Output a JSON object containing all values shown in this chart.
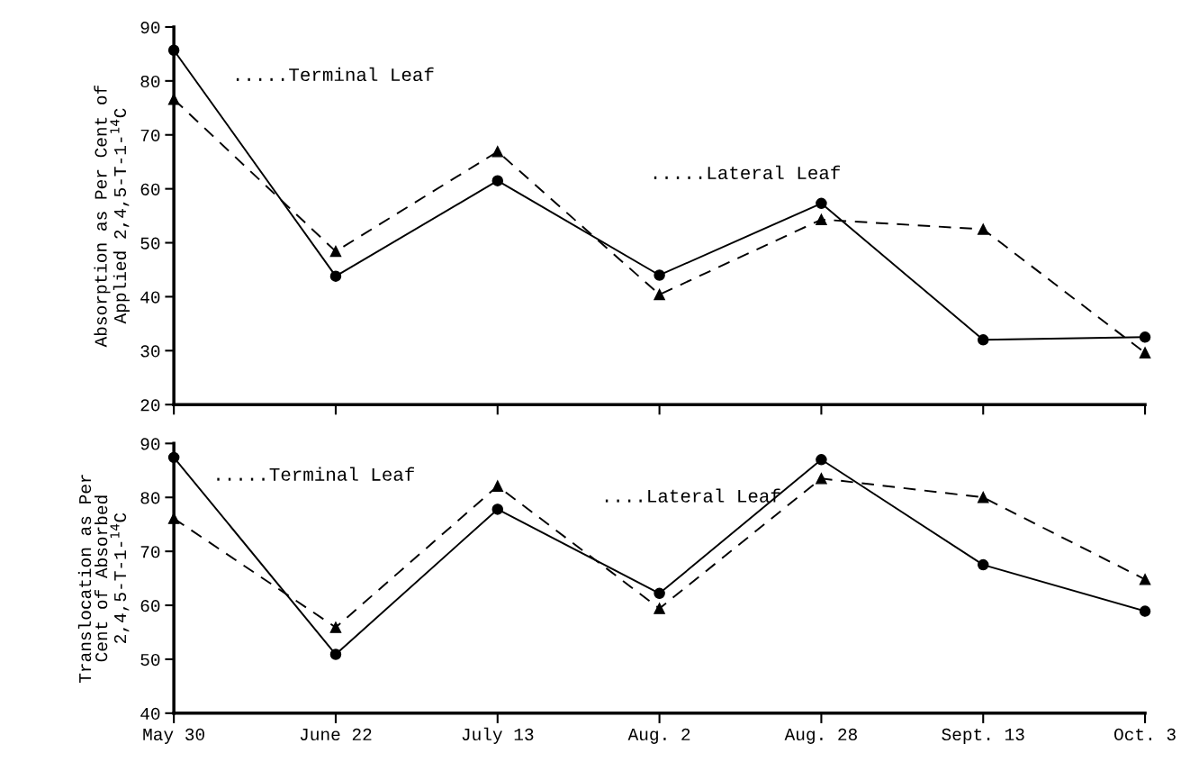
{
  "chart_data": [
    {
      "type": "line",
      "ylabel": "Absorption as Per Cent of\nApplied 2,4,5-T-1-$^{14}$C",
      "categories": [
        null,
        null,
        null,
        null,
        null,
        null,
        null
      ],
      "series": [
        {
          "color": "#000000",
          "marker": "circle",
          "line_style": "solid",
          "values": [
            85.7,
            43.8,
            61.5,
            44,
            57.3,
            32,
            32.5
          ]
        },
        {
          "color": "#000000",
          "marker": "triangle",
          "line_style": "dashed",
          "values": [
            76.6,
            48.4,
            66.9,
            40.4,
            54.3,
            52.5,
            29.6
          ]
        }
      ],
      "ylim": [
        20,
        90
      ],
      "yticks": [
        20,
        30,
        40,
        50,
        60,
        70,
        80,
        90
      ],
      "tick_labels": "y",
      "grid": false,
      "legend": false,
      "annotations": [
        ".....Terminal Leaf",
        ".....Lateral Leaf"
      ]
    },
    {
      "type": "line",
      "ylabel": "Translocation as Per\nCent of Absorbed\n2,4,5-T-1-$^{14}$C",
      "categories": [
        "May 30",
        "June 22",
        "July 13",
        "Aug. 2",
        "Aug. 28",
        "Sept. 13",
        "Oct. 3"
      ],
      "series": [
        {
          "color": "#000000",
          "marker": "circle",
          "line_style": "solid",
          "values": [
            87.4,
            50.9,
            77.8,
            62.2,
            87,
            67.5,
            58.9
          ]
        },
        {
          "color": "#000000",
          "marker": "triangle",
          "line_style": "dashed",
          "values": [
            76.1,
            55.9,
            82.1,
            59.4,
            83.5,
            80,
            64.8
          ]
        }
      ],
      "ylim": [
        40,
        90
      ],
      "yticks": [
        40,
        50,
        60,
        70,
        80,
        90
      ],
      "grid": false,
      "legend": false,
      "annotations": [
        ".....Terminal Leaf",
        "....Lateral Leaf"
      ]
    }
  ]
}
